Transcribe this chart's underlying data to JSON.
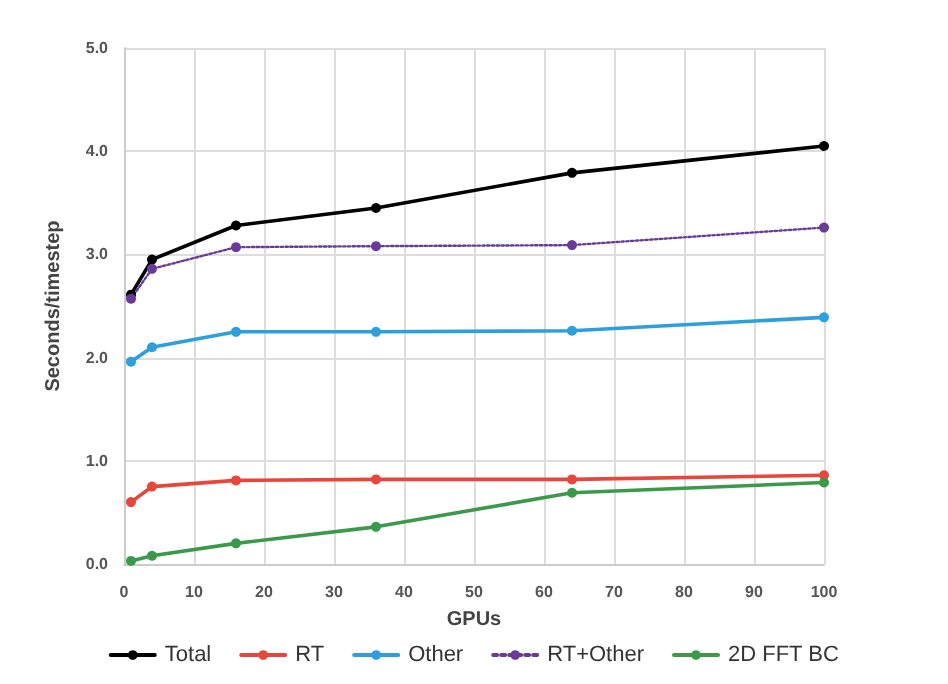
{
  "chart_data": {
    "type": "line",
    "xlabel": "GPUs",
    "ylabel": "Seconds/timestep",
    "x": [
      1,
      4,
      16,
      36,
      64,
      100
    ],
    "series": [
      {
        "name": "Total",
        "color": "#000000",
        "values": [
          2.61,
          2.95,
          3.28,
          3.45,
          3.79,
          4.05
        ]
      },
      {
        "name": "RT",
        "color": "#e8463a",
        "values": [
          0.6,
          0.75,
          0.81,
          0.82,
          0.82,
          0.86
        ]
      },
      {
        "name": "Other",
        "color": "#2d9fdc",
        "values": [
          1.96,
          2.1,
          2.25,
          2.25,
          2.26,
          2.39
        ]
      },
      {
        "name": "RT+Other",
        "color": "#6a3a9a",
        "values": [
          2.57,
          2.86,
          3.07,
          3.08,
          3.09,
          3.26
        ],
        "line_style": "dotted"
      },
      {
        "name": "2D FFT BC",
        "color": "#3a9a4a",
        "values": [
          0.03,
          0.08,
          0.2,
          0.36,
          0.69,
          0.79
        ]
      }
    ],
    "xlim": [
      0,
      100
    ],
    "xticks": [
      0,
      10,
      20,
      30,
      40,
      50,
      60,
      70,
      80,
      90,
      100
    ],
    "ylim": [
      0,
      5
    ],
    "yticks": [
      {
        "value": 0,
        "label": "0.0"
      },
      {
        "value": 1,
        "label": "1.0"
      },
      {
        "value": 2,
        "label": "2.0"
      },
      {
        "value": 3,
        "label": "3.0"
      },
      {
        "value": 4,
        "label": "4.0"
      },
      {
        "value": 5,
        "label": "5.0"
      }
    ],
    "grid": true,
    "legend": "bottom",
    "marker": "circle",
    "line_style": "solid"
  }
}
